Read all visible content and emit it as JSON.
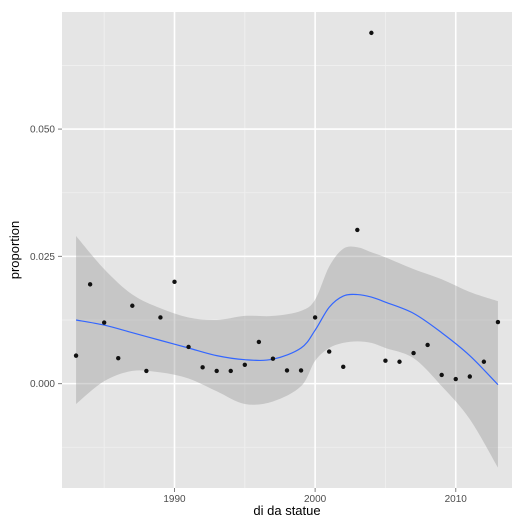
{
  "chart_data": {
    "type": "scatter",
    "xlabel": "di da statue",
    "ylabel": "proportion",
    "xlim": [
      1982,
      2014
    ],
    "ylim": [
      -0.0205,
      0.073
    ],
    "x_ticks": [
      1990,
      2000,
      2010
    ],
    "x_tick_labels": [
      "1990",
      "2000",
      "2010"
    ],
    "y_ticks": [
      0.0,
      0.025,
      0.05
    ],
    "y_tick_labels": [
      "0.000",
      "0.025",
      "0.050"
    ],
    "grid": true,
    "colors": {
      "panel_background": "#e5e5e5",
      "grid_major": "#ffffff",
      "grid_minor": "#f0f0f0",
      "points": "#111111",
      "smooth_line": "#3366ff",
      "confidence_band": "#999999",
      "axis_text": "#4d4d4d",
      "axis_title": "#000000"
    },
    "points": [
      {
        "x": 1983,
        "y": 0.0055
      },
      {
        "x": 1984,
        "y": 0.0195
      },
      {
        "x": 1985,
        "y": 0.012
      },
      {
        "x": 1986,
        "y": 0.005
      },
      {
        "x": 1987,
        "y": 0.0153
      },
      {
        "x": 1988,
        "y": 0.0025
      },
      {
        "x": 1989,
        "y": 0.013
      },
      {
        "x": 1990,
        "y": 0.02
      },
      {
        "x": 1991,
        "y": 0.0072
      },
      {
        "x": 1992,
        "y": 0.0032
      },
      {
        "x": 1993,
        "y": 0.0025
      },
      {
        "x": 1994,
        "y": 0.0025
      },
      {
        "x": 1995,
        "y": 0.0037
      },
      {
        "x": 1996,
        "y": 0.0082
      },
      {
        "x": 1997,
        "y": 0.0049
      },
      {
        "x": 1998,
        "y": 0.0026
      },
      {
        "x": 1999,
        "y": 0.0026
      },
      {
        "x": 2000,
        "y": 0.013
      },
      {
        "x": 2001,
        "y": 0.0063
      },
      {
        "x": 2002,
        "y": 0.0033
      },
      {
        "x": 2003,
        "y": 0.0302
      },
      {
        "x": 2004,
        "y": 0.0689
      },
      {
        "x": 2005,
        "y": 0.0045
      },
      {
        "x": 2006,
        "y": 0.0043
      },
      {
        "x": 2007,
        "y": 0.006
      },
      {
        "x": 2008,
        "y": 0.0076
      },
      {
        "x": 2009,
        "y": 0.0017
      },
      {
        "x": 2010,
        "y": 0.0009
      },
      {
        "x": 2011,
        "y": 0.0014
      },
      {
        "x": 2012,
        "y": 0.0043
      },
      {
        "x": 2013,
        "y": 0.0121
      }
    ],
    "smooth": {
      "method": "loess",
      "x": [
        1983,
        1985,
        1987,
        1989,
        1991,
        1993,
        1995,
        1997,
        1999,
        2000,
        2001,
        2002,
        2003,
        2004,
        2005,
        2007,
        2009,
        2011,
        2013
      ],
      "y": [
        0.0125,
        0.0115,
        0.01,
        0.0085,
        0.007,
        0.0055,
        0.0047,
        0.0048,
        0.007,
        0.0105,
        0.015,
        0.0172,
        0.0175,
        0.017,
        0.016,
        0.0138,
        0.01,
        0.0055,
        -0.0002
      ],
      "lower": [
        -0.004,
        0.0005,
        0.0025,
        0.0022,
        0.001,
        -0.0015,
        -0.004,
        -0.0035,
        -0.0005,
        0.0045,
        0.007,
        0.008,
        0.0083,
        0.008,
        0.007,
        0.005,
        -0.0005,
        -0.007,
        -0.0165
      ],
      "upper": [
        0.029,
        0.0225,
        0.0175,
        0.0148,
        0.013,
        0.0125,
        0.0133,
        0.0133,
        0.0143,
        0.0165,
        0.023,
        0.0265,
        0.0268,
        0.0258,
        0.0248,
        0.0225,
        0.0205,
        0.018,
        0.0162
      ]
    }
  }
}
